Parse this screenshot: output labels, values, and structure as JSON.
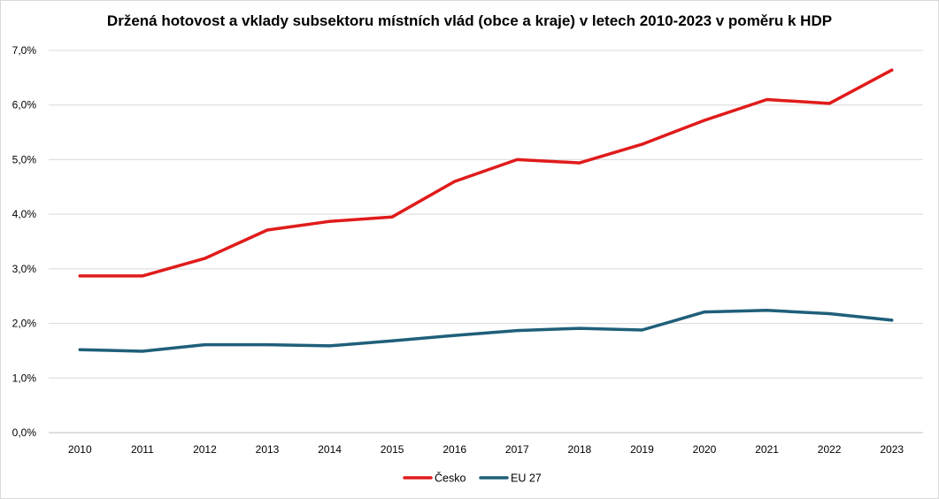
{
  "chart_data": {
    "type": "line",
    "title": "Držená hotovost a vklady subsektoru místních vlád (obce a kraje) v letech 2010-2023 v poměru k HDP",
    "xlabel": "",
    "ylabel": "",
    "categories": [
      "2010",
      "2011",
      "2012",
      "2013",
      "2014",
      "2015",
      "2016",
      "2017",
      "2018",
      "2019",
      "2020",
      "2021",
      "2022",
      "2023"
    ],
    "ylim": [
      0,
      7
    ],
    "yticks": [
      0,
      1,
      2,
      3,
      4,
      5,
      6,
      7
    ],
    "ytick_labels": [
      "0,0%",
      "1,0%",
      "2,0%",
      "3,0%",
      "4,0%",
      "5,0%",
      "6,0%",
      "7,0%"
    ],
    "grid": true,
    "legend_position": "bottom",
    "series": [
      {
        "name": "Česko",
        "color": "#e01b1b",
        "values": [
          2.87,
          2.87,
          3.19,
          3.71,
          3.87,
          3.95,
          4.6,
          5.0,
          4.94,
          5.28,
          5.72,
          6.1,
          6.03,
          6.64
        ]
      },
      {
        "name": "EU 27",
        "color": "#1f5f7a",
        "values": [
          1.52,
          1.49,
          1.61,
          1.61,
          1.59,
          1.68,
          1.78,
          1.87,
          1.91,
          1.88,
          2.21,
          2.24,
          2.18,
          2.06
        ]
      }
    ]
  }
}
